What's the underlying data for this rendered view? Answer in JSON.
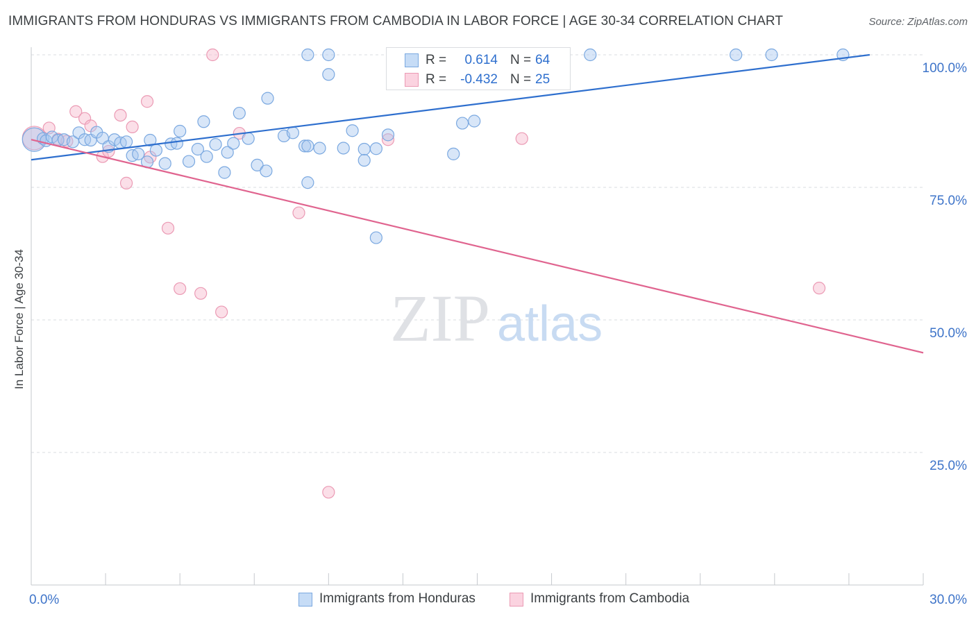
{
  "header": {
    "title": "IMMIGRANTS FROM HONDURAS VS IMMIGRANTS FROM CAMBODIA IN LABOR FORCE | AGE 30-34 CORRELATION CHART",
    "source": "Source: ZipAtlas.com"
  },
  "watermark": {
    "zip": "ZIP",
    "atlas": "atlas"
  },
  "legend": {
    "r_label": "R =",
    "n_label": "N =",
    "honduras": {
      "r": "0.614",
      "n": "64"
    },
    "cambodia": {
      "r": "-0.432",
      "n": "25"
    }
  },
  "colors": {
    "honduras_fill": "#a8c8f0",
    "honduras_stroke": "#7aa8e0",
    "honduras_line": "#2e6fce",
    "cambodia_fill": "#f7b8cc",
    "cambodia_stroke": "#eb9ab4",
    "cambodia_line": "#e0648f",
    "tick_label": "#3e74c9",
    "grid": "#dadce0"
  },
  "chart_data": {
    "type": "scatter",
    "title": "IMMIGRANTS FROM HONDURAS VS IMMIGRANTS FROM CAMBODIA IN LABOR FORCE | AGE 30-34 CORRELATION CHART",
    "xlabel": "",
    "ylabel": "In Labor Force | Age 30-34",
    "xlim": [
      0,
      30
    ],
    "ylim": [
      0,
      105
    ],
    "x_tick_labels": [
      "0.0%",
      "30.0%"
    ],
    "y_ticks": [
      25,
      50,
      75,
      100
    ],
    "y_tick_labels": [
      "25.0%",
      "50.0%",
      "75.0%",
      "100.0%"
    ],
    "grid": true,
    "legend_position": "top-center",
    "series": [
      {
        "name": "Immigrants from Honduras",
        "r": 0.614,
        "n": 64,
        "trend": {
          "x": [
            0,
            28.2
          ],
          "y": [
            80.2,
            100.0
          ]
        },
        "points": [
          {
            "x": 0.1,
            "y": 84.0,
            "big": true
          },
          {
            "x": 0.4,
            "y": 84.2
          },
          {
            "x": 0.5,
            "y": 83.8
          },
          {
            "x": 0.7,
            "y": 84.5
          },
          {
            "x": 0.9,
            "y": 83.9
          },
          {
            "x": 1.1,
            "y": 84.0
          },
          {
            "x": 1.4,
            "y": 83.6
          },
          {
            "x": 1.6,
            "y": 85.3
          },
          {
            "x": 1.8,
            "y": 84.0
          },
          {
            "x": 2.0,
            "y": 83.9
          },
          {
            "x": 2.2,
            "y": 85.4
          },
          {
            "x": 2.4,
            "y": 84.3
          },
          {
            "x": 2.6,
            "y": 82.7
          },
          {
            "x": 2.8,
            "y": 84.0
          },
          {
            "x": 3.0,
            "y": 83.4
          },
          {
            "x": 3.2,
            "y": 83.6
          },
          {
            "x": 3.4,
            "y": 81.0
          },
          {
            "x": 3.6,
            "y": 81.3
          },
          {
            "x": 3.9,
            "y": 79.8
          },
          {
            "x": 4.0,
            "y": 83.9
          },
          {
            "x": 4.2,
            "y": 82.0
          },
          {
            "x": 4.5,
            "y": 79.5
          },
          {
            "x": 4.7,
            "y": 83.2
          },
          {
            "x": 4.9,
            "y": 83.3
          },
          {
            "x": 5.0,
            "y": 85.6
          },
          {
            "x": 5.3,
            "y": 79.9
          },
          {
            "x": 5.6,
            "y": 82.2
          },
          {
            "x": 5.8,
            "y": 87.4
          },
          {
            "x": 5.9,
            "y": 80.8
          },
          {
            "x": 6.2,
            "y": 83.1
          },
          {
            "x": 6.5,
            "y": 77.8
          },
          {
            "x": 6.6,
            "y": 81.6
          },
          {
            "x": 6.8,
            "y": 83.3
          },
          {
            "x": 7.0,
            "y": 89.0
          },
          {
            "x": 7.3,
            "y": 84.2
          },
          {
            "x": 7.6,
            "y": 79.2
          },
          {
            "x": 7.9,
            "y": 78.1
          },
          {
            "x": 7.95,
            "y": 91.8
          },
          {
            "x": 8.5,
            "y": 84.7
          },
          {
            "x": 8.8,
            "y": 85.3
          },
          {
            "x": 9.2,
            "y": 82.8
          },
          {
            "x": 9.3,
            "y": 75.9
          },
          {
            "x": 9.3,
            "y": 82.8
          },
          {
            "x": 9.7,
            "y": 82.4
          },
          {
            "x": 9.3,
            "y": 100.0
          },
          {
            "x": 10.0,
            "y": 100.0
          },
          {
            "x": 10.0,
            "y": 96.3
          },
          {
            "x": 10.5,
            "y": 82.4
          },
          {
            "x": 10.8,
            "y": 85.7
          },
          {
            "x": 11.2,
            "y": 82.2
          },
          {
            "x": 11.2,
            "y": 80.1
          },
          {
            "x": 11.6,
            "y": 82.3
          },
          {
            "x": 11.6,
            "y": 65.5
          },
          {
            "x": 12.0,
            "y": 84.9
          },
          {
            "x": 14.2,
            "y": 81.3
          },
          {
            "x": 14.5,
            "y": 87.1
          },
          {
            "x": 14.9,
            "y": 87.5
          },
          {
            "x": 14.3,
            "y": 100.0
          },
          {
            "x": 17.0,
            "y": 100.0
          },
          {
            "x": 18.8,
            "y": 100.0
          },
          {
            "x": 23.7,
            "y": 100.0
          },
          {
            "x": 24.9,
            "y": 100.0
          },
          {
            "x": 27.3,
            "y": 100.0
          },
          {
            "x": 15.1,
            "y": 100.0
          }
        ]
      },
      {
        "name": "Immigrants from Cambodia",
        "r": -0.432,
        "n": 25,
        "trend": {
          "x": [
            0,
            30
          ],
          "y": [
            84.0,
            43.8
          ]
        },
        "points": [
          {
            "x": 0.1,
            "y": 84.3,
            "big": true
          },
          {
            "x": 0.6,
            "y": 86.2
          },
          {
            "x": 0.9,
            "y": 84.1
          },
          {
            "x": 1.2,
            "y": 83.7
          },
          {
            "x": 1.5,
            "y": 89.3
          },
          {
            "x": 1.8,
            "y": 88.0
          },
          {
            "x": 2.0,
            "y": 86.6
          },
          {
            "x": 2.4,
            "y": 80.8
          },
          {
            "x": 2.6,
            "y": 81.8
          },
          {
            "x": 3.0,
            "y": 88.6
          },
          {
            "x": 3.2,
            "y": 75.8
          },
          {
            "x": 3.4,
            "y": 86.4
          },
          {
            "x": 3.9,
            "y": 91.2
          },
          {
            "x": 4.0,
            "y": 80.7
          },
          {
            "x": 4.6,
            "y": 67.3
          },
          {
            "x": 5.0,
            "y": 55.9
          },
          {
            "x": 5.7,
            "y": 55.0
          },
          {
            "x": 6.1,
            "y": 100.0
          },
          {
            "x": 6.4,
            "y": 51.5
          },
          {
            "x": 7.0,
            "y": 85.2
          },
          {
            "x": 9.0,
            "y": 70.2
          },
          {
            "x": 10.0,
            "y": 17.5
          },
          {
            "x": 16.5,
            "y": 84.2
          },
          {
            "x": 26.5,
            "y": 56.0
          },
          {
            "x": 12.0,
            "y": 84.0
          }
        ]
      }
    ]
  },
  "bottom_legend": {
    "honduras_label": "Immigrants from Honduras",
    "cambodia_label": "Immigrants from Cambodia"
  }
}
